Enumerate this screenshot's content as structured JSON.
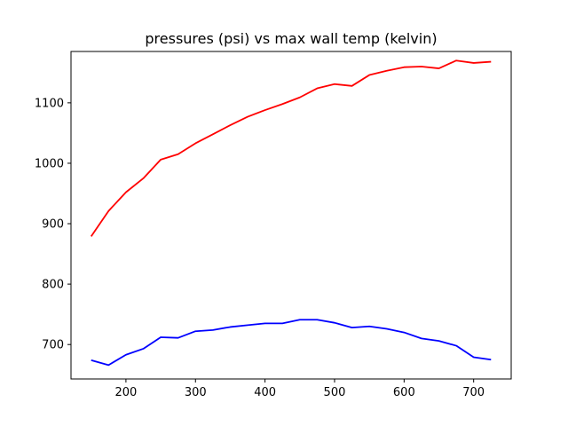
{
  "chart_data": {
    "type": "line",
    "title": "pressures (psi) vs max wall temp (kelvin)",
    "xlabel": "",
    "ylabel": "",
    "xlim": [
      121,
      754
    ],
    "ylim": [
      643,
      1185
    ],
    "xticks": [
      200,
      300,
      400,
      500,
      600,
      700
    ],
    "yticks": [
      700,
      800,
      900,
      1000,
      1100
    ],
    "grid": false,
    "x": [
      150,
      175,
      200,
      225,
      250,
      275,
      300,
      325,
      350,
      375,
      400,
      425,
      450,
      475,
      500,
      525,
      550,
      575,
      600,
      625,
      650,
      675,
      700,
      725
    ],
    "series": [
      {
        "color": "#ff0000",
        "values": [
          879,
          921,
          952,
          975,
          1006,
          1015,
          1033,
          1048,
          1063,
          1077,
          1088,
          1098,
          1109,
          1124,
          1131,
          1128,
          1146,
          1153,
          1159,
          1160,
          1157,
          1170,
          1166,
          1168
        ]
      },
      {
        "color": "#0000ff",
        "values": [
          674,
          666,
          683,
          693,
          712,
          711,
          722,
          724,
          729,
          732,
          735,
          735,
          741,
          741,
          736,
          728,
          730,
          726,
          720,
          710,
          706,
          698,
          679,
          675
        ]
      }
    ]
  }
}
